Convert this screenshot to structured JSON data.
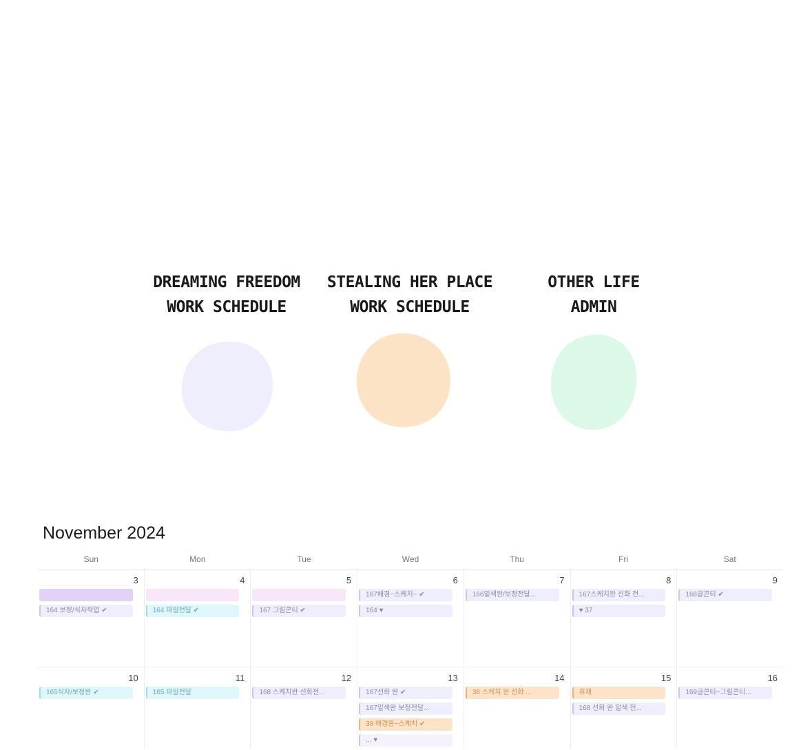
{
  "legend": [
    {
      "line1": "DREAMING FREEDOM",
      "line2": "WORK SCHEDULE",
      "color": "#eeeefc"
    },
    {
      "line1": "STEALING HER PLACE",
      "line2": "WORK SCHEDULE",
      "color": "#fde3c6"
    },
    {
      "line1": "OTHER LIFE",
      "line2": "ADMIN",
      "color": "#dcf8e9"
    }
  ],
  "calendar": {
    "title": "November 2024",
    "weekdays": [
      "Sun",
      "Mon",
      "Tue",
      "Wed",
      "Thu",
      "Fri",
      "Sat"
    ],
    "weeks": [
      {
        "days": [
          {
            "num": "3",
            "events": [
              {
                "style": "purple",
                "text": ""
              },
              {
                "style": "lav",
                "text": "164 보정/식자작업 ✔"
              }
            ]
          },
          {
            "num": "4",
            "events": [
              {
                "style": "pink",
                "text": ""
              },
              {
                "style": "cyan",
                "text": "164 파일전달 ✔"
              }
            ]
          },
          {
            "num": "5",
            "events": [
              {
                "style": "pink",
                "text": ""
              },
              {
                "style": "lav",
                "text": "167 그림콘티 ✔"
              }
            ]
          },
          {
            "num": "6",
            "events": [
              {
                "style": "lav",
                "text": "167배경~스케치~ ✔"
              },
              {
                "style": "lav",
                "text": "164 ♥"
              }
            ]
          },
          {
            "num": "7",
            "events": [
              {
                "style": "lav",
                "text": "166밑색완/보정전달..."
              }
            ]
          },
          {
            "num": "8",
            "events": [
              {
                "style": "lav",
                "text": "167스케치완 선화 전..."
              },
              {
                "style": "lav",
                "text": "♥ 37"
              }
            ]
          },
          {
            "num": "9",
            "events": [
              {
                "style": "lav",
                "text": "168글콘티 ✔"
              }
            ]
          }
        ]
      },
      {
        "days": [
          {
            "num": "10",
            "events": [
              {
                "style": "cyan",
                "text": "165식자/보정완 ✔"
              }
            ]
          },
          {
            "num": "11",
            "events": [
              {
                "style": "cyan",
                "text": "165 파일전달"
              }
            ]
          },
          {
            "num": "12",
            "events": [
              {
                "style": "lav",
                "text": "168 스케치완 선화전..."
              }
            ]
          },
          {
            "num": "13",
            "events": [
              {
                "style": "lav",
                "text": "167선화 완 ✔"
              },
              {
                "style": "lav",
                "text": "167밑색완 보정전달..."
              },
              {
                "style": "peach",
                "text": "38 배경완~스케치 ✔"
              },
              {
                "style": "faint",
                "text": "... ♥"
              }
            ]
          },
          {
            "num": "14",
            "events": [
              {
                "style": "peach",
                "text": "38 스케치 완 선화 ..."
              }
            ]
          },
          {
            "num": "15",
            "events": [
              {
                "style": "peach",
                "text": "휴재"
              },
              {
                "style": "lav",
                "text": "168 선화 완 밑색 전..."
              }
            ]
          },
          {
            "num": "16",
            "events": [
              {
                "style": "lav",
                "text": "169글콘티~그림콘티..."
              }
            ]
          }
        ]
      }
    ]
  }
}
